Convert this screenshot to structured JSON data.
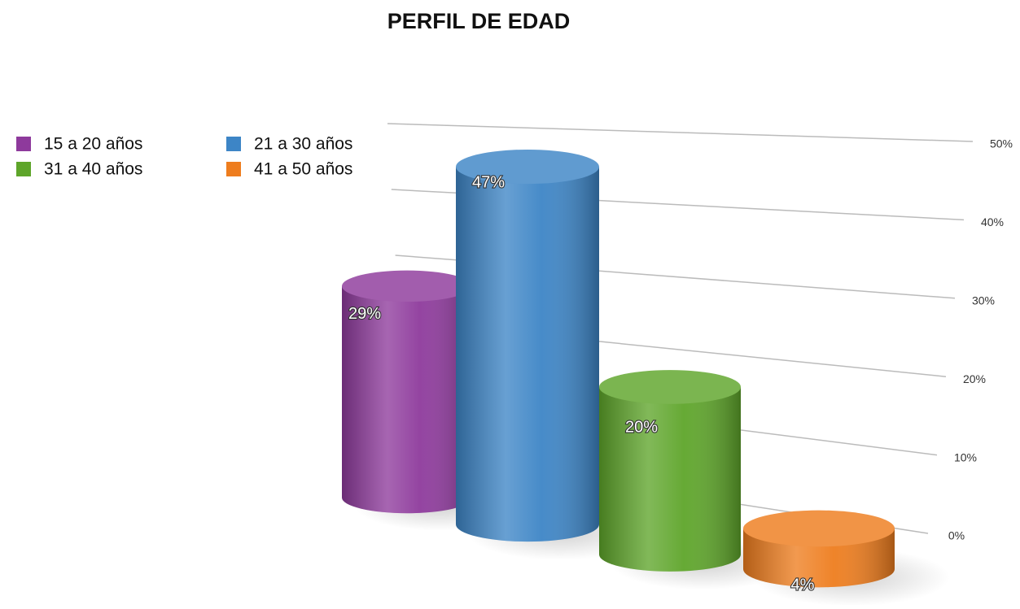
{
  "chart_data": {
    "type": "bar3d",
    "title": "PERFIL DE EDAD",
    "series": [
      {
        "name": "15 a 20 años",
        "color": "#8e3a9c",
        "values": [
          29
        ],
        "value_labels": [
          "29%"
        ]
      },
      {
        "name": "21 a 30 años",
        "color": "#3d85c6",
        "values": [
          47
        ],
        "value_labels": [
          "47%"
        ]
      },
      {
        "name": "31 a 40 años",
        "color": "#5ea52a",
        "values": [
          20
        ],
        "value_labels": [
          "20%"
        ]
      },
      {
        "name": "41 a 50 años",
        "color": "#ee7d1e",
        "values": [
          4
        ],
        "value_labels": [
          "4%"
        ]
      }
    ],
    "ylim": [
      0,
      50
    ],
    "yticks": [
      {
        "value": 0,
        "label": "0%"
      },
      {
        "value": 10,
        "label": "10%"
      },
      {
        "value": 20,
        "label": "20%"
      },
      {
        "value": 30,
        "label": "30%"
      },
      {
        "value": 40,
        "label": "40%"
      },
      {
        "value": 50,
        "label": "50%"
      }
    ],
    "grid": true
  }
}
